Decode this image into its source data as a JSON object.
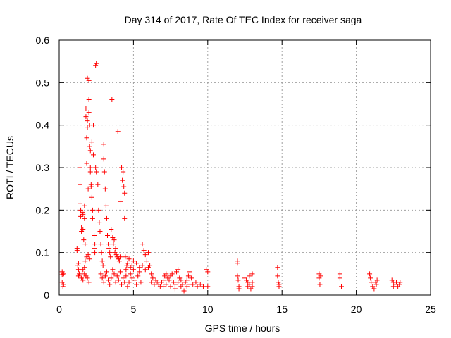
{
  "chart_data": {
    "type": "scatter",
    "title": "Day 314 of 2017, Rate Of TEC Index for receiver saga",
    "xlabel": "GPS time / hours",
    "ylabel": "ROTI / TECUs",
    "xlim": [
      0,
      25
    ],
    "ylim": [
      0,
      0.6
    ],
    "xticks": [
      0,
      5,
      10,
      15,
      20,
      25
    ],
    "yticks": [
      0,
      0.1,
      0.2,
      0.3,
      0.4,
      0.5,
      0.6
    ],
    "xtick_labels": [
      "0",
      "5",
      "10",
      "15",
      "20",
      "25"
    ],
    "ytick_labels": [
      "0",
      "0.1",
      "0.2",
      "0.3",
      "0.4",
      "0.5",
      "0.6"
    ],
    "grid": true,
    "marker": "+",
    "colors": {
      "series": "#ff0000",
      "grid": "#a0a0a0",
      "axis": "#000000"
    },
    "series": [
      {
        "name": "ROTI",
        "points": [
          [
            0.2,
            0.055
          ],
          [
            0.2,
            0.048
          ],
          [
            0.2,
            0.03
          ],
          [
            0.25,
            0.02
          ],
          [
            0.3,
            0.05
          ],
          [
            0.3,
            0.025
          ],
          [
            1.2,
            0.11
          ],
          [
            1.2,
            0.105
          ],
          [
            1.25,
            0.07
          ],
          [
            1.3,
            0.075
          ],
          [
            1.3,
            0.06
          ],
          [
            1.35,
            0.05
          ],
          [
            1.4,
            0.3
          ],
          [
            1.4,
            0.26
          ],
          [
            1.4,
            0.215
          ],
          [
            1.45,
            0.2
          ],
          [
            1.45,
            0.185
          ],
          [
            1.5,
            0.16
          ],
          [
            1.5,
            0.15
          ],
          [
            1.55,
            0.195
          ],
          [
            1.6,
            0.19
          ],
          [
            1.6,
            0.155
          ],
          [
            1.65,
            0.13
          ],
          [
            1.7,
            0.21
          ],
          [
            1.7,
            0.18
          ],
          [
            1.75,
            0.12
          ],
          [
            1.8,
            0.44
          ],
          [
            1.8,
            0.42
          ],
          [
            1.85,
            0.37
          ],
          [
            1.85,
            0.31
          ],
          [
            1.9,
            0.51
          ],
          [
            1.9,
            0.41
          ],
          [
            1.9,
            0.395
          ],
          [
            1.95,
            0.25
          ],
          [
            2.0,
            0.505
          ],
          [
            2.0,
            0.46
          ],
          [
            2.0,
            0.43
          ],
          [
            2.05,
            0.4
          ],
          [
            2.05,
            0.35
          ],
          [
            2.1,
            0.34
          ],
          [
            2.1,
            0.3
          ],
          [
            2.1,
            0.29
          ],
          [
            2.15,
            0.26
          ],
          [
            2.15,
            0.255
          ],
          [
            2.2,
            0.36
          ],
          [
            2.2,
            0.23
          ],
          [
            2.25,
            0.2
          ],
          [
            2.25,
            0.18
          ],
          [
            2.3,
            0.33
          ],
          [
            2.3,
            0.4
          ],
          [
            2.35,
            0.14
          ],
          [
            2.35,
            0.11
          ],
          [
            2.4,
            0.1
          ],
          [
            2.4,
            0.12
          ],
          [
            2.45,
            0.54
          ],
          [
            2.5,
            0.545
          ],
          [
            2.5,
            0.29
          ],
          [
            2.45,
            0.3
          ],
          [
            1.3,
            0.045
          ],
          [
            1.5,
            0.04
          ],
          [
            1.6,
            0.035
          ],
          [
            1.7,
            0.05
          ],
          [
            1.8,
            0.045
          ],
          [
            1.9,
            0.04
          ],
          [
            2.0,
            0.03
          ],
          [
            1.6,
            0.06
          ],
          [
            1.7,
            0.065
          ],
          [
            1.75,
            0.08
          ],
          [
            1.85,
            0.09
          ],
          [
            1.95,
            0.095
          ],
          [
            2.05,
            0.085
          ],
          [
            2.6,
            0.26
          ],
          [
            2.65,
            0.2
          ],
          [
            2.7,
            0.17
          ],
          [
            2.75,
            0.15
          ],
          [
            2.8,
            0.12
          ],
          [
            2.85,
            0.1
          ],
          [
            2.9,
            0.08
          ],
          [
            2.95,
            0.07
          ],
          [
            3.0,
            0.355
          ],
          [
            3.0,
            0.32
          ],
          [
            3.05,
            0.29
          ],
          [
            3.1,
            0.25
          ],
          [
            3.15,
            0.21
          ],
          [
            3.2,
            0.18
          ],
          [
            3.25,
            0.14
          ],
          [
            3.3,
            0.12
          ],
          [
            3.35,
            0.11
          ],
          [
            3.4,
            0.1
          ],
          [
            3.45,
            0.09
          ],
          [
            3.5,
            0.155
          ],
          [
            3.55,
            0.46
          ],
          [
            3.6,
            0.135
          ],
          [
            3.65,
            0.12
          ],
          [
            3.7,
            0.13
          ],
          [
            3.75,
            0.1
          ],
          [
            3.8,
            0.11
          ],
          [
            3.85,
            0.095
          ],
          [
            3.9,
            0.09
          ],
          [
            3.95,
            0.385
          ],
          [
            4.0,
            0.085
          ],
          [
            4.05,
            0.08
          ],
          [
            4.1,
            0.09
          ],
          [
            4.15,
            0.22
          ],
          [
            4.2,
            0.3
          ],
          [
            4.25,
            0.27
          ],
          [
            4.3,
            0.29
          ],
          [
            4.35,
            0.255
          ],
          [
            4.4,
            0.24
          ],
          [
            4.4,
            0.18
          ],
          [
            4.45,
            0.09
          ],
          [
            4.5,
            0.06
          ],
          [
            4.55,
            0.07
          ],
          [
            2.8,
            0.05
          ],
          [
            2.9,
            0.04
          ],
          [
            3.0,
            0.03
          ],
          [
            3.1,
            0.045
          ],
          [
            3.2,
            0.055
          ],
          [
            3.3,
            0.035
          ],
          [
            3.4,
            0.025
          ],
          [
            3.5,
            0.04
          ],
          [
            3.6,
            0.06
          ],
          [
            3.7,
            0.05
          ],
          [
            3.8,
            0.03
          ],
          [
            3.9,
            0.045
          ],
          [
            4.0,
            0.035
          ],
          [
            4.1,
            0.055
          ],
          [
            4.2,
            0.025
          ],
          [
            4.3,
            0.04
          ],
          [
            4.4,
            0.03
          ],
          [
            4.5,
            0.045
          ],
          [
            4.6,
            0.02
          ],
          [
            4.7,
            0.03
          ],
          [
            4.8,
            0.05
          ],
          [
            4.9,
            0.04
          ],
          [
            5.0,
            0.06
          ],
          [
            5.1,
            0.035
          ],
          [
            5.2,
            0.025
          ],
          [
            5.3,
            0.045
          ],
          [
            5.4,
            0.055
          ],
          [
            5.5,
            0.03
          ],
          [
            5.6,
            0.12
          ],
          [
            5.7,
            0.105
          ],
          [
            5.8,
            0.095
          ],
          [
            5.9,
            0.08
          ],
          [
            6.0,
            0.1
          ],
          [
            6.1,
            0.07
          ],
          [
            6.2,
            0.05
          ],
          [
            6.3,
            0.04
          ],
          [
            4.6,
            0.075
          ],
          [
            4.7,
            0.085
          ],
          [
            4.8,
            0.065
          ],
          [
            4.9,
            0.07
          ],
          [
            5.0,
            0.08
          ],
          [
            5.2,
            0.075
          ],
          [
            5.4,
            0.065
          ],
          [
            5.6,
            0.07
          ],
          [
            5.8,
            0.06
          ],
          [
            6.0,
            0.065
          ],
          [
            6.2,
            0.03
          ],
          [
            6.4,
            0.025
          ],
          [
            6.5,
            0.035
          ],
          [
            6.6,
            0.03
          ],
          [
            6.7,
            0.025
          ],
          [
            6.8,
            0.02
          ],
          [
            6.9,
            0.03
          ],
          [
            7.0,
            0.035
          ],
          [
            7.1,
            0.045
          ],
          [
            7.2,
            0.05
          ],
          [
            7.3,
            0.04
          ],
          [
            7.4,
            0.035
          ],
          [
            7.5,
            0.045
          ],
          [
            7.6,
            0.05
          ],
          [
            7.7,
            0.03
          ],
          [
            7.8,
            0.025
          ],
          [
            7.9,
            0.055
          ],
          [
            8.0,
            0.06
          ],
          [
            8.1,
            0.04
          ],
          [
            8.2,
            0.035
          ],
          [
            8.3,
            0.025
          ],
          [
            8.4,
            0.01
          ],
          [
            8.5,
            0.03
          ],
          [
            8.6,
            0.035
          ],
          [
            8.7,
            0.045
          ],
          [
            8.8,
            0.055
          ],
          [
            8.9,
            0.04
          ],
          [
            9.0,
            0.025
          ],
          [
            7.0,
            0.02
          ],
          [
            7.2,
            0.025
          ],
          [
            7.5,
            0.02
          ],
          [
            7.8,
            0.015
          ],
          [
            8.0,
            0.03
          ],
          [
            8.2,
            0.02
          ],
          [
            8.6,
            0.02
          ],
          [
            8.8,
            0.025
          ],
          [
            9.2,
            0.03
          ],
          [
            9.3,
            0.02
          ],
          [
            9.5,
            0.025
          ],
          [
            9.7,
            0.02
          ],
          [
            9.9,
            0.06
          ],
          [
            10.0,
            0.055
          ],
          [
            10.0,
            0.02
          ],
          [
            12.0,
            0.08
          ],
          [
            12.0,
            0.075
          ],
          [
            12.0,
            0.045
          ],
          [
            12.05,
            0.035
          ],
          [
            12.1,
            0.015
          ],
          [
            12.1,
            0.02
          ],
          [
            12.5,
            0.04
          ],
          [
            12.6,
            0.035
          ],
          [
            12.7,
            0.03
          ],
          [
            12.7,
            0.02
          ],
          [
            12.8,
            0.045
          ],
          [
            12.8,
            0.025
          ],
          [
            12.9,
            0.015
          ],
          [
            13.0,
            0.05
          ],
          [
            13.0,
            0.03
          ],
          [
            13.0,
            0.02
          ],
          [
            14.7,
            0.065
          ],
          [
            14.7,
            0.045
          ],
          [
            14.75,
            0.03
          ],
          [
            14.8,
            0.025
          ],
          [
            14.8,
            0.02
          ],
          [
            17.5,
            0.05
          ],
          [
            17.5,
            0.04
          ],
          [
            17.55,
            0.025
          ],
          [
            17.6,
            0.045
          ],
          [
            18.9,
            0.05
          ],
          [
            18.9,
            0.04
          ],
          [
            19.0,
            0.02
          ],
          [
            20.9,
            0.05
          ],
          [
            20.95,
            0.04
          ],
          [
            21.0,
            0.03
          ],
          [
            21.1,
            0.02
          ],
          [
            21.2,
            0.015
          ],
          [
            21.3,
            0.03
          ],
          [
            21.35,
            0.025
          ],
          [
            21.4,
            0.035
          ],
          [
            22.4,
            0.035
          ],
          [
            22.5,
            0.03
          ],
          [
            22.5,
            0.02
          ],
          [
            22.6,
            0.025
          ],
          [
            22.7,
            0.03
          ],
          [
            22.8,
            0.02
          ],
          [
            22.9,
            0.025
          ],
          [
            22.95,
            0.03
          ]
        ]
      }
    ]
  }
}
